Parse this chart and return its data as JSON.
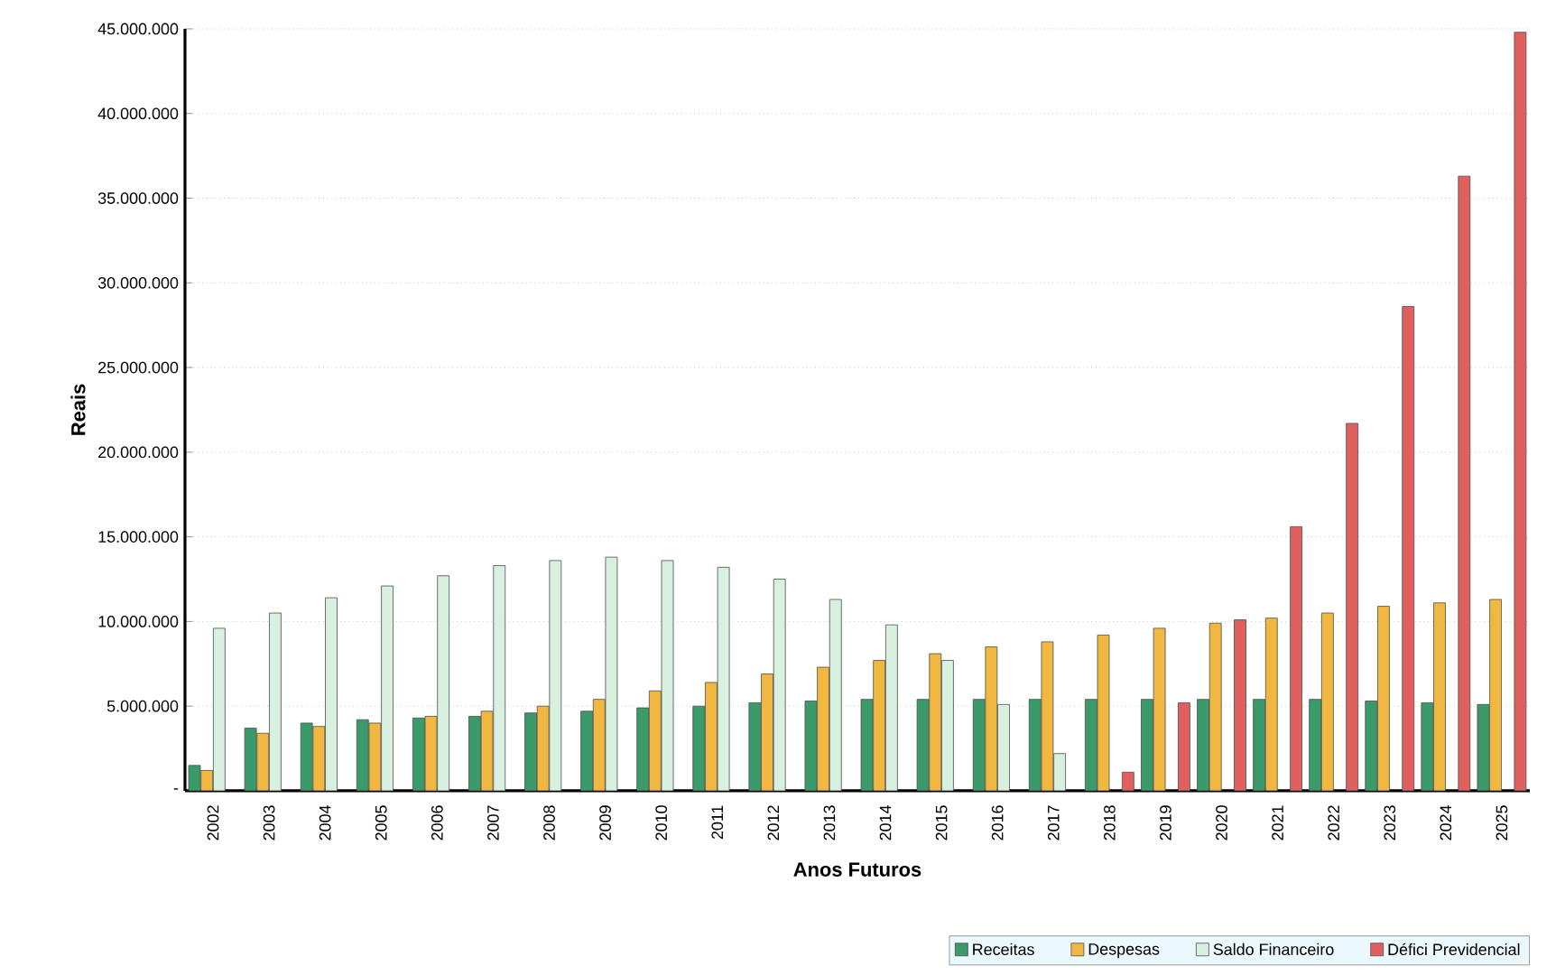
{
  "chart_data": {
    "type": "bar",
    "xlabel": "Anos Futuros",
    "ylabel": "Reais",
    "categories": [
      "2002",
      "2003",
      "2004",
      "2005",
      "2006",
      "2007",
      "2008",
      "2009",
      "2010",
      "2011",
      "2012",
      "2013",
      "2014",
      "2015",
      "2016",
      "2017",
      "2018",
      "2019",
      "2020",
      "2021",
      "2022",
      "2023",
      "2024",
      "2025"
    ],
    "series": [
      {
        "name": "Receitas",
        "color": "#3a9a6a",
        "values": [
          1500000,
          3700000,
          4000000,
          4200000,
          4300000,
          4400000,
          4600000,
          4700000,
          4900000,
          5000000,
          5200000,
          5300000,
          5400000,
          5400000,
          5400000,
          5400000,
          5400000,
          5400000,
          5400000,
          5400000,
          5400000,
          5300000,
          5200000,
          5100000
        ]
      },
      {
        "name": "Despesas",
        "color": "#f0b840",
        "values": [
          1200000,
          3400000,
          3800000,
          4000000,
          4400000,
          4700000,
          5000000,
          5400000,
          5900000,
          6400000,
          6900000,
          7300000,
          7700000,
          8100000,
          8500000,
          8800000,
          9200000,
          9600000,
          9900000,
          10200000,
          10500000,
          10900000,
          11100000,
          11300000
        ]
      },
      {
        "name": "Saldo Financeiro",
        "color": "#d8f0e0",
        "values": [
          9600000,
          10500000,
          11400000,
          12100000,
          12700000,
          13300000,
          13600000,
          13800000,
          13600000,
          13200000,
          12500000,
          11300000,
          9800000,
          7700000,
          5100000,
          2200000,
          null,
          null,
          null,
          null,
          null,
          null,
          null,
          null
        ]
      },
      {
        "name": "Défici Previdencial",
        "color": "#e06060",
        "values": [
          null,
          null,
          null,
          null,
          null,
          null,
          null,
          null,
          null,
          null,
          null,
          null,
          null,
          null,
          null,
          null,
          1100000,
          5200000,
          10100000,
          15600000,
          21700000,
          28600000,
          36300000,
          44800000
        ]
      }
    ],
    "ylim": [
      0,
      45000000
    ],
    "yticks": [
      {
        "value": 0,
        "label": "-"
      },
      {
        "value": 5000000,
        "label": "5.000.000"
      },
      {
        "value": 10000000,
        "label": "10.000.000"
      },
      {
        "value": 15000000,
        "label": "15.000.000"
      },
      {
        "value": 20000000,
        "label": "20.000.000"
      },
      {
        "value": 25000000,
        "label": "25.000.000"
      },
      {
        "value": 30000000,
        "label": "30.000.000"
      },
      {
        "value": 35000000,
        "label": "35.000.000"
      },
      {
        "value": 40000000,
        "label": "40.000.000"
      },
      {
        "value": 45000000,
        "label": "45.000.000"
      }
    ],
    "grid": "y",
    "legend": "bottom right"
  }
}
